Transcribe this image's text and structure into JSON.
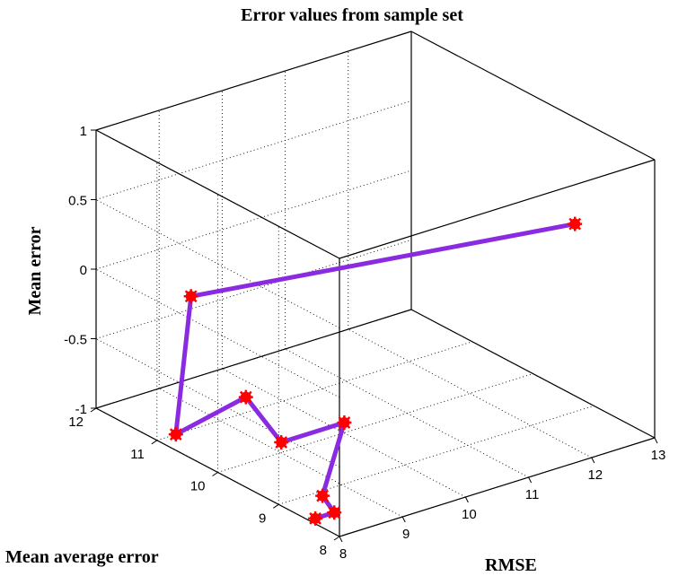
{
  "chart_data": {
    "type": "line3d",
    "title": "Error values from sample set",
    "xlabel": "RMSE",
    "ylabel": "Mean average error",
    "zlabel": "Mean error",
    "xlim": [
      8,
      13
    ],
    "ylim": [
      8,
      12
    ],
    "zlim": [
      -1,
      1
    ],
    "xticks": [
      8,
      9,
      10,
      11,
      12,
      13
    ],
    "yticks": [
      8,
      9,
      10,
      11,
      12
    ],
    "zticks": [
      -1,
      -0.5,
      0,
      0.5,
      1
    ],
    "grid": true,
    "line_color": "#8a2be2",
    "marker_color": "#ff0000",
    "series": [
      {
        "points": [
          {
            "x": 12.7,
            "y": 9.0,
            "z": 0.35
          },
          {
            "x": 8.3,
            "y": 10.75,
            "z": 0.05
          },
          {
            "x": 8.3,
            "y": 11.0,
            "z": -1.0
          },
          {
            "x": 9.7,
            "y": 11.3,
            "z": -1.0
          },
          {
            "x": 9.2,
            "y": 10.2,
            "z": -1.0
          },
          {
            "x": 10.2,
            "y": 10.2,
            "z": -1.0
          },
          {
            "x": 8.6,
            "y": 8.9,
            "z": -1.0
          },
          {
            "x": 8.4,
            "y": 8.5,
            "z": -1.0
          },
          {
            "x": 8.1,
            "y": 8.5,
            "z": -1.0
          }
        ]
      }
    ]
  }
}
